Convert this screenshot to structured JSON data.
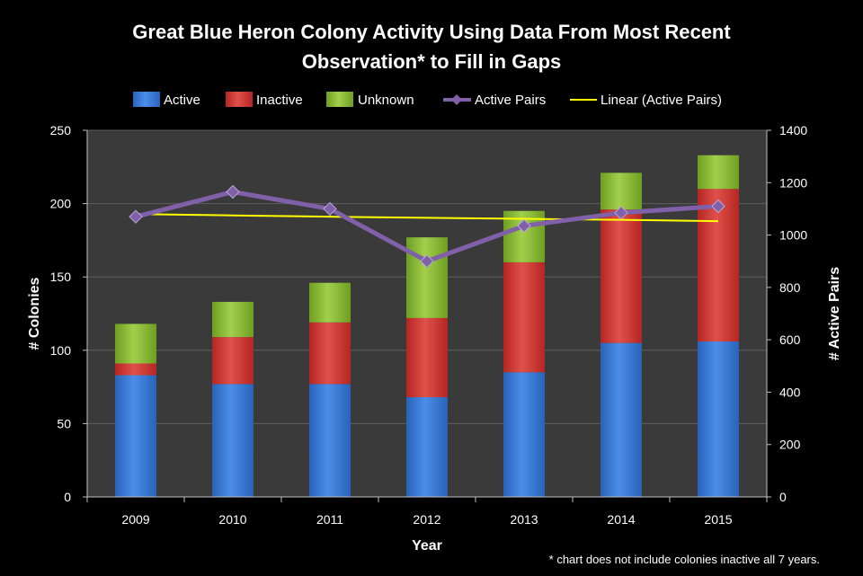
{
  "chart_data": {
    "type": "bar",
    "stacked": true,
    "title": "Great Blue Heron Colony Activity Using Data From Most Recent Observation* to Fill in Gaps",
    "title_lines": [
      "Great Blue Heron Colony Activity Using Data From Most Recent",
      "Observation* to Fill in Gaps"
    ],
    "categories": [
      "2009",
      "2010",
      "2011",
      "2012",
      "2013",
      "2014",
      "2015"
    ],
    "series": [
      {
        "name": "Active",
        "type": "bar",
        "axis": "left",
        "color": "#3d7fd9",
        "values": [
          83,
          77,
          77,
          68,
          85,
          105,
          106
        ]
      },
      {
        "name": "Inactive",
        "type": "bar",
        "axis": "left",
        "color": "#d93a35",
        "values": [
          8,
          32,
          42,
          54,
          75,
          91,
          104
        ]
      },
      {
        "name": "Unknown",
        "type": "bar",
        "axis": "left",
        "color": "#8cbf3a",
        "values": [
          27,
          24,
          27,
          55,
          35,
          25,
          23
        ]
      },
      {
        "name": "Active Pairs",
        "type": "line",
        "axis": "right",
        "color": "#8060a8",
        "values": [
          1070,
          1165,
          1100,
          900,
          1035,
          1085,
          1110
        ]
      },
      {
        "name": "Linear (Active Pairs)",
        "type": "trendline",
        "axis": "right",
        "color": "#ffff00",
        "values": [
          1080,
          1075,
          1070,
          1066,
          1062,
          1058,
          1053
        ]
      }
    ],
    "xlabel": "Year",
    "ylabel": "# Colonies",
    "y2label": "# Active Pairs",
    "ylim": [
      0,
      250
    ],
    "yticks": [
      "0",
      "50",
      "100",
      "150",
      "200",
      "250"
    ],
    "y2lim": [
      0,
      1400
    ],
    "y2ticks": [
      "0",
      "200",
      "400",
      "600",
      "800",
      "1000",
      "1200",
      "1400"
    ],
    "grid": true,
    "legend_position": "top",
    "legend": [
      "Active",
      "Inactive",
      "Unknown",
      "Active Pairs",
      "Linear (Active Pairs)"
    ],
    "plot_background": "#3a3a3a",
    "footnote": "* chart does not include colonies inactive all 7 years."
  }
}
